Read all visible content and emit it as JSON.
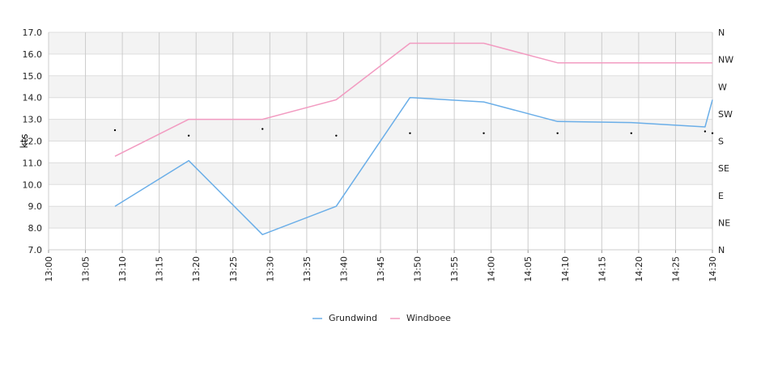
{
  "chart_data": {
    "type": "line",
    "ylabel": "kts",
    "ylim": [
      7.0,
      17.0
    ],
    "yticks": [
      "7.0",
      "8.0",
      "9.0",
      "10.0",
      "11.0",
      "12.0",
      "13.0",
      "14.0",
      "15.0",
      "16.0",
      "17.0"
    ],
    "x_ticks": [
      "13:00",
      "13:05",
      "13:10",
      "13:15",
      "13:20",
      "13:25",
      "13:30",
      "13:35",
      "13:40",
      "13:45",
      "13:50",
      "13:55",
      "14:00",
      "14:05",
      "14:10",
      "14:15",
      "14:20",
      "14:25",
      "14:30"
    ],
    "xlim": [
      "13:00",
      "14:30"
    ],
    "right_axis": {
      "labels": [
        "N",
        "NE",
        "E",
        "SE",
        "S",
        "SW",
        "W",
        "NW",
        "N"
      ],
      "range_deg": [
        0,
        360
      ]
    },
    "grid": true,
    "legend_position": "bottom-center",
    "series": [
      {
        "name": "Grundwind",
        "color": "#6aaee8",
        "points": [
          {
            "x": "13:09",
            "y": 9.0
          },
          {
            "x": "13:19",
            "y": 11.1
          },
          {
            "x": "13:29",
            "y": 7.7
          },
          {
            "x": "13:39",
            "y": 9.0
          },
          {
            "x": "13:49",
            "y": 14.0
          },
          {
            "x": "13:59",
            "y": 13.8
          },
          {
            "x": "14:09",
            "y": 12.9
          },
          {
            "x": "14:19",
            "y": 12.85
          },
          {
            "x": "14:29",
            "y": 12.65
          },
          {
            "x": "14:30",
            "y": 13.9
          }
        ]
      },
      {
        "name": "Windboee",
        "color": "#f29bc1",
        "points": [
          {
            "x": "13:09",
            "y": 11.3
          },
          {
            "x": "13:19",
            "y": 13.0
          },
          {
            "x": "13:29",
            "y": 13.0
          },
          {
            "x": "13:39",
            "y": 13.9
          },
          {
            "x": "13:49",
            "y": 16.5
          },
          {
            "x": "13:59",
            "y": 16.5
          },
          {
            "x": "14:09",
            "y": 15.6
          },
          {
            "x": "14:19",
            "y": 15.6
          },
          {
            "x": "14:29",
            "y": 15.6
          },
          {
            "x": "14:30",
            "y": 15.6
          }
        ]
      }
    ],
    "direction_points": [
      {
        "x": "13:09",
        "deg": 198
      },
      {
        "x": "13:19",
        "deg": 189
      },
      {
        "x": "13:29",
        "deg": 200
      },
      {
        "x": "13:39",
        "deg": 189
      },
      {
        "x": "13:49",
        "deg": 193
      },
      {
        "x": "13:59",
        "deg": 193
      },
      {
        "x": "14:09",
        "deg": 193
      },
      {
        "x": "14:19",
        "deg": 193
      },
      {
        "x": "14:29",
        "deg": 196
      },
      {
        "x": "14:30",
        "deg": 193
      }
    ]
  }
}
